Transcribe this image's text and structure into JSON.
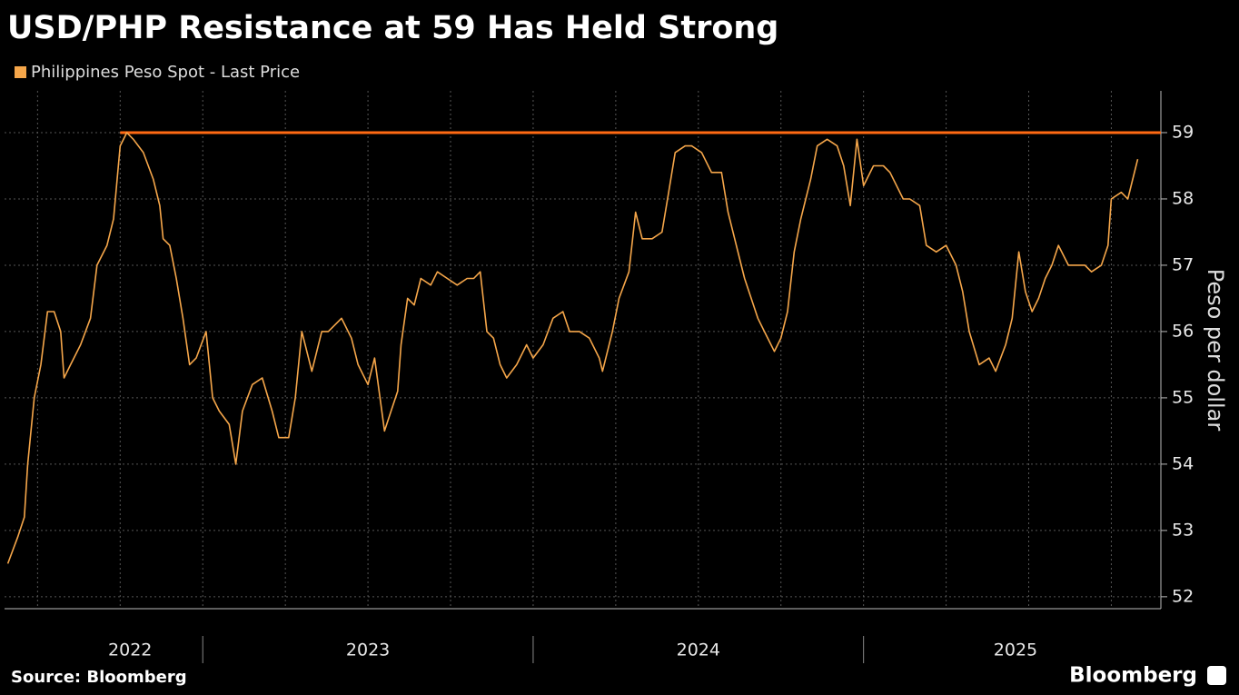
{
  "chart_data": {
    "type": "line",
    "title": "USD/PHP Resistance at 59 Has Held Strong",
    "y_axis_label": "Peso per dollar",
    "source": "Source: Bloomberg",
    "brand": "Bloomberg",
    "xlim": [
      2022.4,
      2025.9
    ],
    "ylim": [
      51.82,
      59.63
    ],
    "yticks": [
      52,
      53,
      54,
      55,
      56,
      57,
      58,
      59
    ],
    "xticks": [
      {
        "value": 2022.78,
        "label": "2022"
      },
      {
        "value": 2023.5,
        "label": "2023"
      },
      {
        "value": 2024.5,
        "label": "2024"
      },
      {
        "value": 2025.46,
        "label": "2025"
      }
    ],
    "xgrid": [
      2022.5,
      2022.75,
      2023,
      2023.25,
      2023.5,
      2023.75,
      2024,
      2024.25,
      2024.5,
      2024.75,
      2025,
      2025.25,
      2025.5,
      2025.75
    ],
    "year_separators": [
      2023,
      2024,
      2025
    ],
    "grid": true,
    "reference_line": {
      "value": 59,
      "from": 2022.75,
      "color": "#ff6a13"
    },
    "x": [
      2022.41,
      2022.44,
      2022.46,
      2022.47,
      2022.49,
      2022.51,
      2022.53,
      2022.55,
      2022.57,
      2022.58,
      2022.6,
      2022.63,
      2022.66,
      2022.68,
      2022.71,
      2022.73,
      2022.75,
      2022.77,
      2022.79,
      2022.82,
      2022.85,
      2022.87,
      2022.88,
      2022.9,
      2022.92,
      2022.94,
      2022.96,
      2022.98,
      2023.01,
      2023.03,
      2023.05,
      2023.08,
      2023.1,
      2023.12,
      2023.15,
      2023.18,
      2023.21,
      2023.23,
      2023.26,
      2023.28,
      2023.3,
      2023.33,
      2023.36,
      2023.38,
      2023.42,
      2023.45,
      2023.47,
      2023.5,
      2023.52,
      2023.55,
      2023.57,
      2023.59,
      2023.6,
      2023.62,
      2023.64,
      2023.66,
      2023.69,
      2023.71,
      2023.74,
      2023.77,
      2023.8,
      2023.82,
      2023.84,
      2023.86,
      2023.88,
      2023.9,
      2023.92,
      2023.95,
      2023.98,
      2024.0,
      2024.03,
      2024.06,
      2024.09,
      2024.11,
      2024.14,
      2024.17,
      2024.2,
      2024.21,
      2024.24,
      2024.26,
      2024.29,
      2024.31,
      2024.33,
      2024.36,
      2024.39,
      2024.41,
      2024.43,
      2024.46,
      2024.48,
      2024.51,
      2024.54,
      2024.57,
      2024.59,
      2024.62,
      2024.64,
      2024.66,
      2024.68,
      2024.7,
      2024.73,
      2024.75,
      2024.77,
      2024.79,
      2024.81,
      2024.84,
      2024.86,
      2024.89,
      2024.92,
      2024.94,
      2024.96,
      2024.98,
      2025.0,
      2025.03,
      2025.06,
      2025.08,
      2025.12,
      2025.14,
      2025.17,
      2025.19,
      2025.22,
      2025.25,
      2025.28,
      2025.3,
      2025.32,
      2025.35,
      2025.38,
      2025.4,
      2025.43,
      2025.45,
      2025.47,
      2025.49,
      2025.51,
      2025.53,
      2025.55,
      2025.57,
      2025.59,
      2025.62,
      2025.64,
      2025.67,
      2025.69,
      2025.72,
      2025.74,
      2025.75,
      2025.78,
      2025.8,
      2025.83
    ],
    "series": [
      {
        "name": "Philippines Peso Spot - Last Price",
        "color": "#f5a64a",
        "values": [
          52.5,
          52.9,
          53.2,
          54.0,
          55.0,
          55.5,
          56.3,
          56.3,
          56.0,
          55.3,
          55.5,
          55.8,
          56.2,
          57.0,
          57.3,
          57.7,
          58.8,
          59.0,
          58.9,
          58.7,
          58.3,
          57.9,
          57.4,
          57.3,
          56.8,
          56.2,
          55.5,
          55.6,
          56.0,
          55.0,
          54.8,
          54.6,
          54.0,
          54.8,
          55.2,
          55.3,
          54.8,
          54.4,
          54.4,
          55.0,
          56.0,
          55.4,
          56.0,
          56.0,
          56.2,
          55.9,
          55.5,
          55.2,
          55.6,
          54.5,
          54.8,
          55.1,
          55.8,
          56.5,
          56.4,
          56.8,
          56.7,
          56.9,
          56.8,
          56.7,
          56.8,
          56.8,
          56.9,
          56.0,
          55.9,
          55.5,
          55.3,
          55.5,
          55.8,
          55.6,
          55.8,
          56.2,
          56.3,
          56.0,
          56.0,
          55.9,
          55.6,
          55.4,
          56.0,
          56.5,
          56.9,
          57.8,
          57.4,
          57.4,
          57.5,
          58.1,
          58.7,
          58.8,
          58.8,
          58.7,
          58.4,
          58.4,
          57.8,
          57.2,
          56.8,
          56.5,
          56.2,
          56.0,
          55.7,
          55.9,
          56.3,
          57.2,
          57.7,
          58.3,
          58.8,
          58.9,
          58.8,
          58.5,
          57.9,
          58.9,
          58.2,
          58.5,
          58.5,
          58.4,
          58.0,
          58.0,
          57.9,
          57.3,
          57.2,
          57.3,
          57.0,
          56.6,
          56.0,
          55.5,
          55.6,
          55.4,
          55.8,
          56.2,
          57.2,
          56.6,
          56.3,
          56.5,
          56.8,
          57.0,
          57.3,
          57.0,
          57.0,
          57.0,
          56.9,
          57.0,
          57.3,
          58.0,
          58.1,
          58.0,
          58.6
        ]
      }
    ]
  }
}
